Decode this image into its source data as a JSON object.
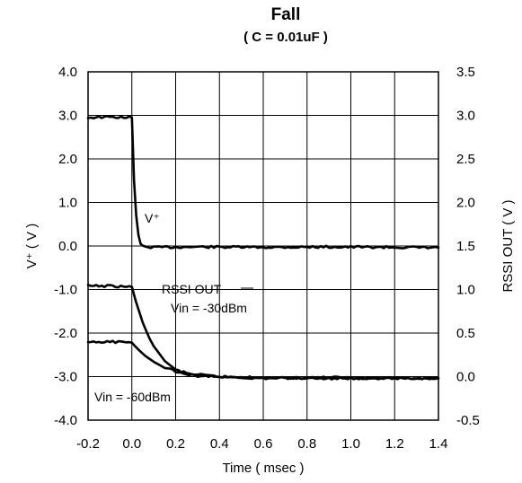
{
  "chart_data": {
    "type": "line",
    "title": "Fall",
    "subtitle": "( C = 0.01uF )",
    "xlabel": "Time ( msec )",
    "ylabel_left": "V⁺ ( V )",
    "ylabel_right": "RSSI OUT ( V )",
    "xlim": [
      -0.2,
      1.4
    ],
    "ylim_left": [
      -4.0,
      4.0
    ],
    "ylim_right": [
      -0.5,
      3.5
    ],
    "x_ticks": [
      "-0.2",
      "0.0",
      "0.2",
      "0.4",
      "0.6",
      "0.8",
      "1.0",
      "1.2",
      "1.4"
    ],
    "y_ticks_left": [
      "4.0",
      "3.0",
      "2.0",
      "1.0",
      "0.0",
      "-1.0",
      "-2.0",
      "-3.0",
      "-4.0"
    ],
    "y_ticks_right": [
      "3.5",
      "3.0",
      "2.5",
      "2.0",
      "1.5",
      "1.0",
      "0.5",
      "0.0",
      "-0.5"
    ],
    "grid": true,
    "series": [
      {
        "name": "V⁺",
        "axis": "left",
        "x": [
          -0.2,
          -0.1,
          0.0,
          0.01,
          0.02,
          0.03,
          0.04,
          0.05,
          0.06,
          0.1,
          0.3,
          0.6,
          0.9,
          1.2,
          1.4
        ],
        "y": [
          2.95,
          2.96,
          2.95,
          1.5,
          0.7,
          0.25,
          0.05,
          0.0,
          -0.02,
          -0.03,
          -0.02,
          -0.03,
          -0.02,
          -0.03,
          -0.04
        ]
      },
      {
        "name": "RSSI OUT Vin = -30dBm",
        "axis": "right",
        "x": [
          -0.2,
          -0.1,
          0.0,
          0.02,
          0.05,
          0.08,
          0.1,
          0.15,
          0.2,
          0.25,
          0.3,
          0.4,
          0.6,
          0.9,
          1.2,
          1.4
        ],
        "y": [
          1.04,
          1.04,
          1.03,
          0.85,
          0.62,
          0.44,
          0.35,
          0.18,
          0.08,
          0.04,
          0.02,
          0.0,
          -0.02,
          -0.01,
          -0.02,
          -0.02
        ]
      },
      {
        "name": "Vin = -60dBm",
        "axis": "right",
        "x": [
          -0.2,
          -0.1,
          0.0,
          0.03,
          0.06,
          0.1,
          0.15,
          0.2,
          0.25,
          0.3,
          0.35,
          0.4,
          0.6,
          0.9,
          1.2,
          1.4
        ],
        "y": [
          0.39,
          0.4,
          0.39,
          0.31,
          0.24,
          0.17,
          0.1,
          0.06,
          0.03,
          0.01,
          0.0,
          0.0,
          -0.01,
          -0.02,
          -0.02,
          -0.02
        ]
      }
    ],
    "annotations": [
      "V⁺",
      "RSSI OUT",
      "Vin = -30dBm",
      "Vin = -60dBm"
    ]
  }
}
